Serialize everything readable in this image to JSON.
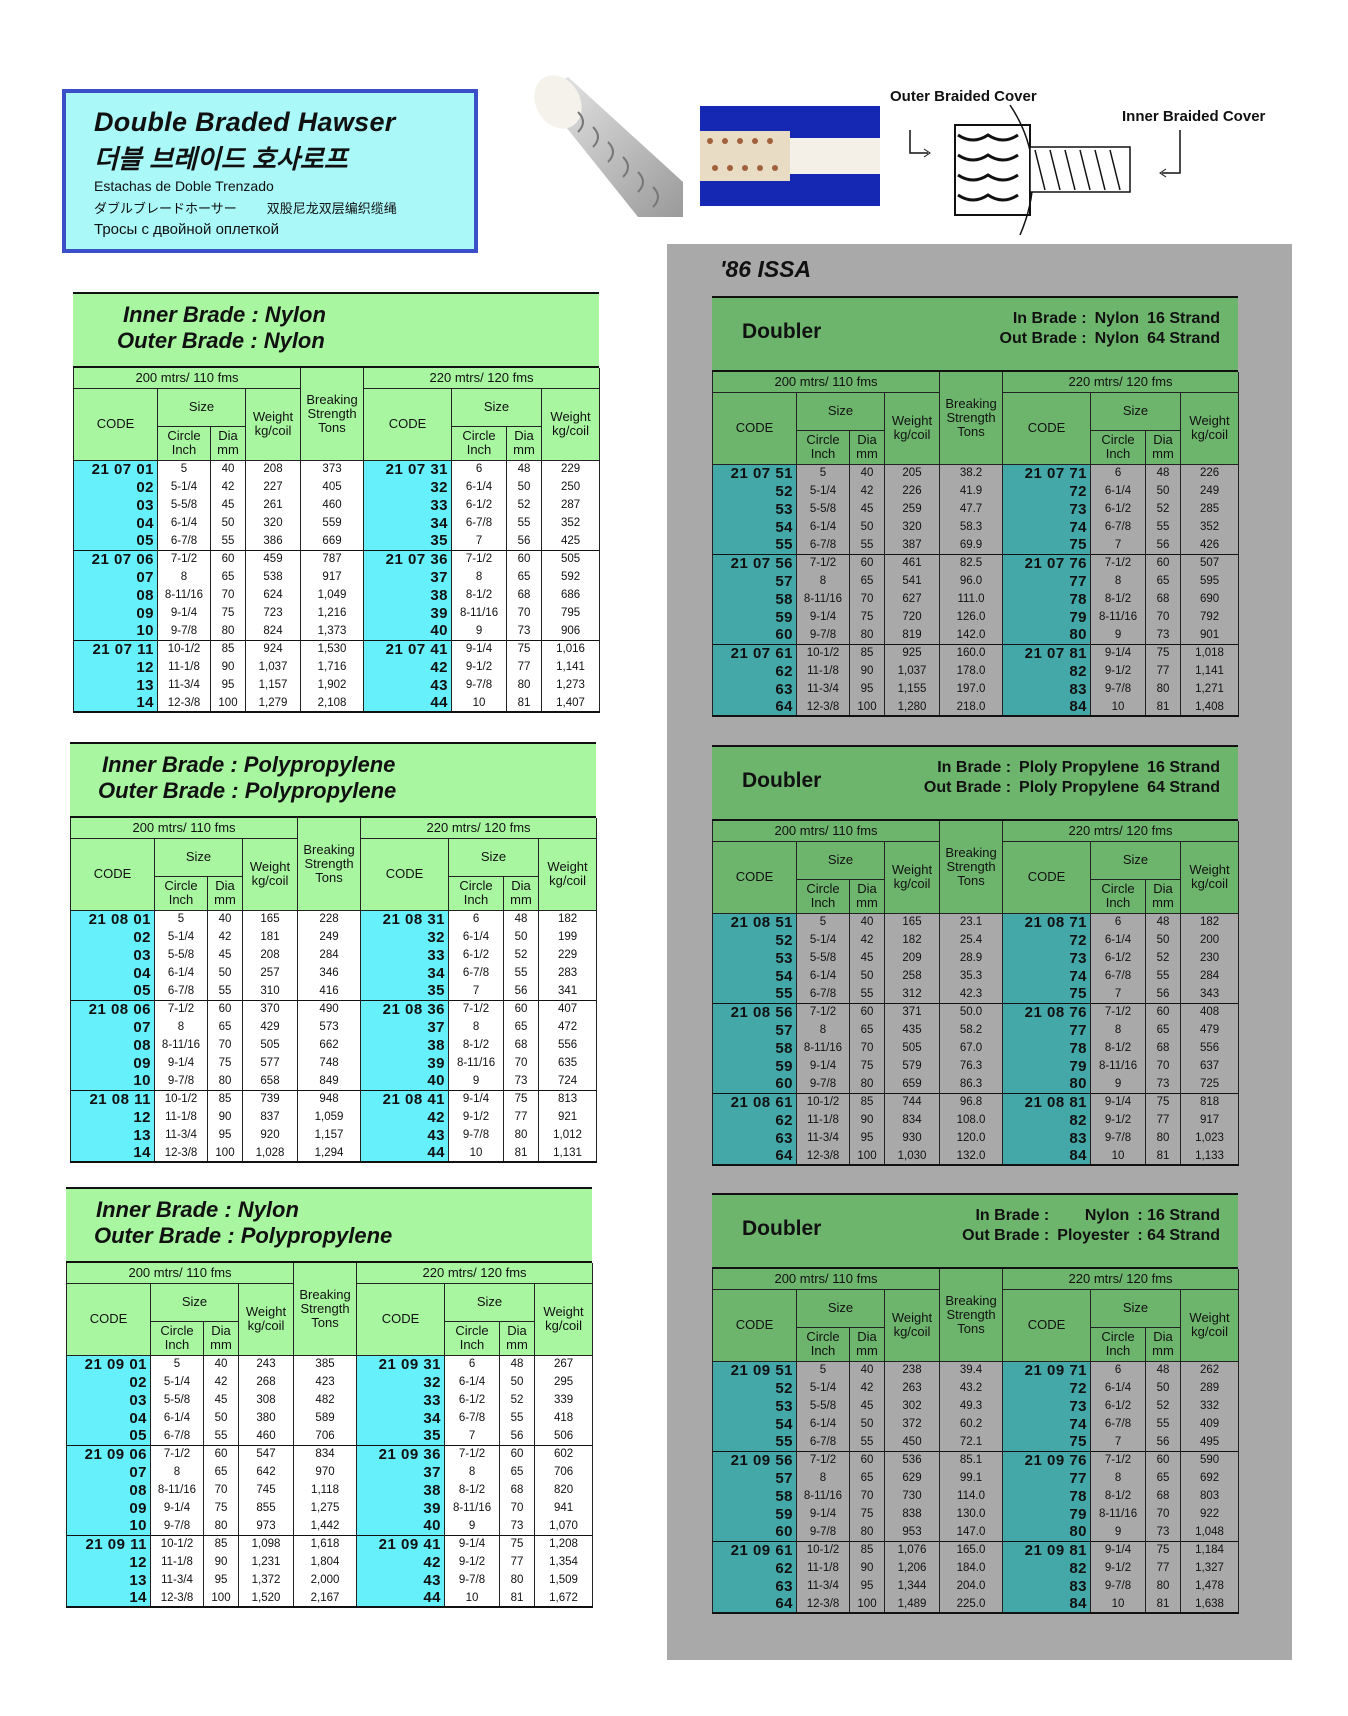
{
  "title_box": {
    "title_en": "Double Braded Hawser",
    "title_ko": "더블 브레이드 호사로프",
    "es": "Estachas de Doble Trenzado",
    "jp": "ダブルブレードホーサー",
    "zh": "双股尼龙双层编织缆绳",
    "ru": "Тросы с двойной оплеткой"
  },
  "diagram": {
    "outer_label": "Outer Braided Cover",
    "inner_label": "Inner Braided Cover"
  },
  "issa_label": "'86 ISSA",
  "colors": {
    "light_header": "#a8f7a0",
    "light_code": "#66f0fc",
    "dark_header": "#6db56d",
    "dark_code": "#44a8a8",
    "panel": "#a9a9a9",
    "title_bg": "#aaf8f8",
    "title_border": "#3b4fc8"
  },
  "headers": {
    "left_length": "200 mtrs/ 110 fms",
    "right_length": "220 mtrs/ 120 fms",
    "code": "CODE",
    "size": "Size",
    "circle": "Circle",
    "inch": "Inch",
    "dia": "Dia",
    "mm": "mm",
    "weight": "Weight",
    "kgcoil": "kg/coil",
    "breaking": "Breaking",
    "strength": "Strength",
    "tons": "Tons"
  },
  "tables": [
    {
      "style": "light",
      "line1": "Inner Brade : Nylon",
      "line2": "Outer Brade : Nylon",
      "columns": {
        "code_l": [
          "21 07 01",
          "02",
          "03",
          "04",
          "05",
          "21 07 06",
          "07",
          "08",
          "09",
          "10",
          "21 07 11",
          "12",
          "13",
          "14"
        ],
        "circle_l": [
          "5",
          "5-1/4",
          "5-5/8",
          "6-1/4",
          "6-7/8",
          "7-1/2",
          "8",
          "8-11/16",
          "9-1/4",
          "9-7/8",
          "10-1/2",
          "11-1/8",
          "11-3/4",
          "12-3/8"
        ],
        "dia_l": [
          "40",
          "42",
          "45",
          "50",
          "55",
          "60",
          "65",
          "70",
          "75",
          "80",
          "85",
          "90",
          "95",
          "100"
        ],
        "weight_l": [
          "208",
          "227",
          "261",
          "320",
          "386",
          "459",
          "538",
          "624",
          "723",
          "824",
          "924",
          "1,037",
          "1,157",
          "1,279"
        ],
        "breaking": [
          "373",
          "405",
          "460",
          "559",
          "669",
          "787",
          "917",
          "1,049",
          "1,216",
          "1,373",
          "1,530",
          "1,716",
          "1,902",
          "2,108"
        ],
        "code_r": [
          "21 07 31",
          "32",
          "33",
          "34",
          "35",
          "21 07 36",
          "37",
          "38",
          "39",
          "40",
          "21 07 41",
          "42",
          "43",
          "44"
        ],
        "circle_r": [
          "6",
          "6-1/4",
          "6-1/2",
          "6-7/8",
          "7",
          "7-1/2",
          "8",
          "8-1/2",
          "8-11/16",
          "9",
          "9-1/4",
          "9-1/2",
          "9-7/8",
          "10"
        ],
        "dia_r": [
          "48",
          "50",
          "52",
          "55",
          "56",
          "60",
          "65",
          "68",
          "70",
          "73",
          "75",
          "77",
          "80",
          "81"
        ],
        "weight_r": [
          "229",
          "250",
          "287",
          "352",
          "425",
          "505",
          "592",
          "686",
          "795",
          "906",
          "1,016",
          "1,141",
          "1,273",
          "1,407"
        ]
      }
    },
    {
      "style": "light",
      "line1": "Inner Brade : Polypropylene",
      "line2": "Outer Brade :  Polypropylene",
      "columns": {
        "code_l": [
          "21 08 01",
          "02",
          "03",
          "04",
          "05",
          "21 08 06",
          "07",
          "08",
          "09",
          "10",
          "21 08 11",
          "12",
          "13",
          "14"
        ],
        "circle_l": [
          "5",
          "5-1/4",
          "5-5/8",
          "6-1/4",
          "6-7/8",
          "7-1/2",
          "8",
          "8-11/16",
          "9-1/4",
          "9-7/8",
          "10-1/2",
          "11-1/8",
          "11-3/4",
          "12-3/8"
        ],
        "dia_l": [
          "40",
          "42",
          "45",
          "50",
          "55",
          "60",
          "65",
          "70",
          "75",
          "80",
          "85",
          "90",
          "95",
          "100"
        ],
        "weight_l": [
          "165",
          "181",
          "208",
          "257",
          "310",
          "370",
          "429",
          "505",
          "577",
          "658",
          "739",
          "837",
          "920",
          "1,028"
        ],
        "breaking": [
          "228",
          "249",
          "284",
          "346",
          "416",
          "490",
          "573",
          "662",
          "748",
          "849",
          "948",
          "1,059",
          "1,157",
          "1,294"
        ],
        "code_r": [
          "21 08 31",
          "32",
          "33",
          "34",
          "35",
          "21 08 36",
          "37",
          "38",
          "39",
          "40",
          "21 08 41",
          "42",
          "43",
          "44"
        ],
        "circle_r": [
          "6",
          "6-1/4",
          "6-1/2",
          "6-7/8",
          "7",
          "7-1/2",
          "8",
          "8-1/2",
          "8-11/16",
          "9",
          "9-1/4",
          "9-1/2",
          "9-7/8",
          "10"
        ],
        "dia_r": [
          "48",
          "50",
          "52",
          "55",
          "56",
          "60",
          "65",
          "68",
          "70",
          "73",
          "75",
          "77",
          "80",
          "81"
        ],
        "weight_r": [
          "182",
          "199",
          "229",
          "283",
          "341",
          "407",
          "472",
          "556",
          "635",
          "724",
          "813",
          "921",
          "1,012",
          "1,131"
        ]
      }
    },
    {
      "style": "light",
      "line1": "Inner Brade : Nylon",
      "line2": "Outer Brade :  Polypropylene",
      "columns": {
        "code_l": [
          "21 09 01",
          "02",
          "03",
          "04",
          "05",
          "21 09 06",
          "07",
          "08",
          "09",
          "10",
          "21 09 11",
          "12",
          "13",
          "14"
        ],
        "circle_l": [
          "5",
          "5-1/4",
          "5-5/8",
          "6-1/4",
          "6-7/8",
          "7-1/2",
          "8",
          "8-11/16",
          "9-1/4",
          "9-7/8",
          "10-1/2",
          "11-1/8",
          "11-3/4",
          "12-3/8"
        ],
        "dia_l": [
          "40",
          "42",
          "45",
          "50",
          "55",
          "60",
          "65",
          "70",
          "75",
          "80",
          "85",
          "90",
          "95",
          "100"
        ],
        "weight_l": [
          "243",
          "268",
          "308",
          "380",
          "460",
          "547",
          "642",
          "745",
          "855",
          "973",
          "1,098",
          "1,231",
          "1,372",
          "1,520"
        ],
        "breaking": [
          "385",
          "423",
          "482",
          "589",
          "706",
          "834",
          "970",
          "1,118",
          "1,275",
          "1,442",
          "1,618",
          "1,804",
          "2,000",
          "2,167"
        ],
        "code_r": [
          "21 09 31",
          "32",
          "33",
          "34",
          "35",
          "21 09 36",
          "37",
          "38",
          "39",
          "40",
          "21 09 41",
          "42",
          "43",
          "44"
        ],
        "circle_r": [
          "6",
          "6-1/4",
          "6-1/2",
          "6-7/8",
          "7",
          "7-1/2",
          "8",
          "8-1/2",
          "8-11/16",
          "9",
          "9-1/4",
          "9-1/2",
          "9-7/8",
          "10"
        ],
        "dia_r": [
          "48",
          "50",
          "52",
          "55",
          "56",
          "60",
          "65",
          "68",
          "70",
          "73",
          "75",
          "77",
          "80",
          "81"
        ],
        "weight_r": [
          "267",
          "295",
          "339",
          "418",
          "506",
          "602",
          "706",
          "820",
          "941",
          "1,070",
          "1,208",
          "1,354",
          "1,509",
          "1,672"
        ]
      }
    },
    {
      "style": "dark",
      "doubler": "Doubler",
      "spec": [
        [
          "In Brade :",
          "Nylon",
          "16 Strand"
        ],
        [
          "Out Brade :",
          "Nylon",
          "64 Strand"
        ]
      ],
      "columns": {
        "code_l": [
          "21 07 51",
          "52",
          "53",
          "54",
          "55",
          "21 07 56",
          "57",
          "58",
          "59",
          "60",
          "21 07 61",
          "62",
          "63",
          "64"
        ],
        "circle_l": [
          "5",
          "5-1/4",
          "5-5/8",
          "6-1/4",
          "6-7/8",
          "7-1/2",
          "8",
          "8-11/16",
          "9-1/4",
          "9-7/8",
          "10-1/2",
          "11-1/8",
          "11-3/4",
          "12-3/8"
        ],
        "dia_l": [
          "40",
          "42",
          "45",
          "50",
          "55",
          "60",
          "65",
          "70",
          "75",
          "80",
          "85",
          "90",
          "95",
          "100"
        ],
        "weight_l": [
          "205",
          "226",
          "259",
          "320",
          "387",
          "461",
          "541",
          "627",
          "720",
          "819",
          "925",
          "1,037",
          "1,155",
          "1,280"
        ],
        "breaking": [
          "38.2",
          "41.9",
          "47.7",
          "58.3",
          "69.9",
          "82.5",
          "96.0",
          "111.0",
          "126.0",
          "142.0",
          "160.0",
          "178.0",
          "197.0",
          "218.0"
        ],
        "code_r": [
          "21 07 71",
          "72",
          "73",
          "74",
          "75",
          "21 07 76",
          "77",
          "78",
          "79",
          "80",
          "21 07 81",
          "82",
          "83",
          "84"
        ],
        "circle_r": [
          "6",
          "6-1/4",
          "6-1/2",
          "6-7/8",
          "7",
          "7-1/2",
          "8",
          "8-1/2",
          "8-11/16",
          "9",
          "9-1/4",
          "9-1/2",
          "9-7/8",
          "10"
        ],
        "dia_r": [
          "48",
          "50",
          "52",
          "55",
          "56",
          "60",
          "65",
          "68",
          "70",
          "73",
          "75",
          "77",
          "80",
          "81"
        ],
        "weight_r": [
          "226",
          "249",
          "285",
          "352",
          "426",
          "507",
          "595",
          "690",
          "792",
          "901",
          "1,018",
          "1,141",
          "1,271",
          "1,408"
        ]
      }
    },
    {
      "style": "dark",
      "doubler": "Doubler",
      "spec": [
        [
          "In Brade :",
          "Ploly Propylene",
          "16 Strand"
        ],
        [
          "Out Brade :",
          "Ploly Propylene",
          "64 Strand"
        ]
      ],
      "columns": {
        "code_l": [
          "21 08 51",
          "52",
          "53",
          "54",
          "55",
          "21 08 56",
          "57",
          "58",
          "59",
          "60",
          "21 08 61",
          "62",
          "63",
          "64"
        ],
        "circle_l": [
          "5",
          "5-1/4",
          "5-5/8",
          "6-1/4",
          "6-7/8",
          "7-1/2",
          "8",
          "8-11/16",
          "9-1/4",
          "9-7/8",
          "10-1/2",
          "11-1/8",
          "11-3/4",
          "12-3/8"
        ],
        "dia_l": [
          "40",
          "42",
          "45",
          "50",
          "55",
          "60",
          "65",
          "70",
          "75",
          "80",
          "85",
          "90",
          "95",
          "100"
        ],
        "weight_l": [
          "165",
          "182",
          "209",
          "258",
          "312",
          "371",
          "435",
          "505",
          "579",
          "659",
          "744",
          "834",
          "930",
          "1,030"
        ],
        "breaking": [
          "23.1",
          "25.4",
          "28.9",
          "35.3",
          "42.3",
          "50.0",
          "58.2",
          "67.0",
          "76.3",
          "86.3",
          "96.8",
          "108.0",
          "120.0",
          "132.0"
        ],
        "code_r": [
          "21 08 71",
          "72",
          "73",
          "74",
          "75",
          "21 08 76",
          "77",
          "78",
          "79",
          "80",
          "21 08 81",
          "82",
          "83",
          "84"
        ],
        "circle_r": [
          "6",
          "6-1/4",
          "6-1/2",
          "6-7/8",
          "7",
          "7-1/2",
          "8",
          "8-1/2",
          "8-11/16",
          "9",
          "9-1/4",
          "9-1/2",
          "9-7/8",
          "10"
        ],
        "dia_r": [
          "48",
          "50",
          "52",
          "55",
          "56",
          "60",
          "65",
          "68",
          "70",
          "73",
          "75",
          "77",
          "80",
          "81"
        ],
        "weight_r": [
          "182",
          "200",
          "230",
          "284",
          "343",
          "408",
          "479",
          "556",
          "637",
          "725",
          "818",
          "917",
          "1,023",
          "1,133"
        ]
      }
    },
    {
      "style": "dark",
      "doubler": "Doubler",
      "spec": [
        [
          "In Brade :",
          "Nylon",
          ": 16 Strand"
        ],
        [
          "Out Brade :",
          "Ployester",
          ": 64 Strand"
        ]
      ],
      "columns": {
        "code_l": [
          "21 09 51",
          "52",
          "53",
          "54",
          "55",
          "21 09 56",
          "57",
          "58",
          "59",
          "60",
          "21 09 61",
          "62",
          "63",
          "64"
        ],
        "circle_l": [
          "5",
          "5-1/4",
          "5-5/8",
          "6-1/4",
          "6-7/8",
          "7-1/2",
          "8",
          "8-11/16",
          "9-1/4",
          "9-7/8",
          "10-1/2",
          "11-1/8",
          "11-3/4",
          "12-3/8"
        ],
        "dia_l": [
          "40",
          "42",
          "45",
          "50",
          "55",
          "60",
          "65",
          "70",
          "75",
          "80",
          "85",
          "90",
          "95",
          "100"
        ],
        "weight_l": [
          "238",
          "263",
          "302",
          "372",
          "450",
          "536",
          "629",
          "730",
          "838",
          "953",
          "1,076",
          "1,206",
          "1,344",
          "1,489"
        ],
        "breaking": [
          "39.4",
          "43.2",
          "49.3",
          "60.2",
          "72.1",
          "85.1",
          "99.1",
          "114.0",
          "130.0",
          "147.0",
          "165.0",
          "184.0",
          "204.0",
          "225.0"
        ],
        "code_r": [
          "21 09 71",
          "72",
          "73",
          "74",
          "75",
          "21 09 76",
          "77",
          "78",
          "79",
          "80",
          "21 09 81",
          "82",
          "83",
          "84"
        ],
        "circle_r": [
          "6",
          "6-1/4",
          "6-1/2",
          "6-7/8",
          "7",
          "7-1/2",
          "8",
          "8-1/2",
          "8-11/16",
          "9",
          "9-1/4",
          "9-1/2",
          "9-7/8",
          "10"
        ],
        "dia_r": [
          "48",
          "50",
          "52",
          "55",
          "56",
          "60",
          "65",
          "68",
          "70",
          "73",
          "75",
          "77",
          "80",
          "81"
        ],
        "weight_r": [
          "262",
          "289",
          "332",
          "409",
          "495",
          "590",
          "692",
          "803",
          "922",
          "1,048",
          "1,184",
          "1,327",
          "1,478",
          "1,638"
        ]
      }
    }
  ]
}
